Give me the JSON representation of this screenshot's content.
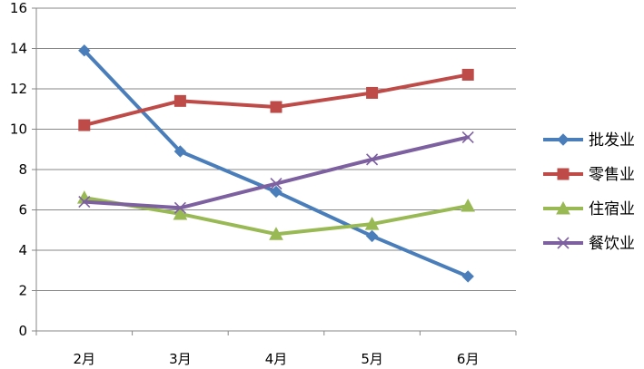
{
  "chart_data": {
    "type": "line",
    "title": "",
    "xlabel": "",
    "ylabel": "",
    "categories": [
      "2月",
      "3月",
      "4月",
      "5月",
      "6月"
    ],
    "ylim": [
      0,
      16
    ],
    "yticks": [
      0,
      2,
      4,
      6,
      8,
      10,
      12,
      14,
      16
    ],
    "grid": true,
    "legend_position": "right",
    "series": [
      {
        "name": "批发业",
        "values": [
          13.9,
          8.9,
          6.9,
          4.7,
          2.7
        ],
        "color": "#4a7ebb",
        "marker": "diamond"
      },
      {
        "name": "零售业",
        "values": [
          10.2,
          11.4,
          11.1,
          11.8,
          12.7
        ],
        "color": "#be4b48",
        "marker": "square"
      },
      {
        "name": "住宿业",
        "values": [
          6.6,
          5.8,
          4.8,
          5.3,
          6.2
        ],
        "color": "#98b954",
        "marker": "triangle"
      },
      {
        "name": "餐饮业",
        "values": [
          6.4,
          6.1,
          7.3,
          8.5,
          9.6
        ],
        "color": "#7d60a0",
        "marker": "x"
      }
    ]
  }
}
